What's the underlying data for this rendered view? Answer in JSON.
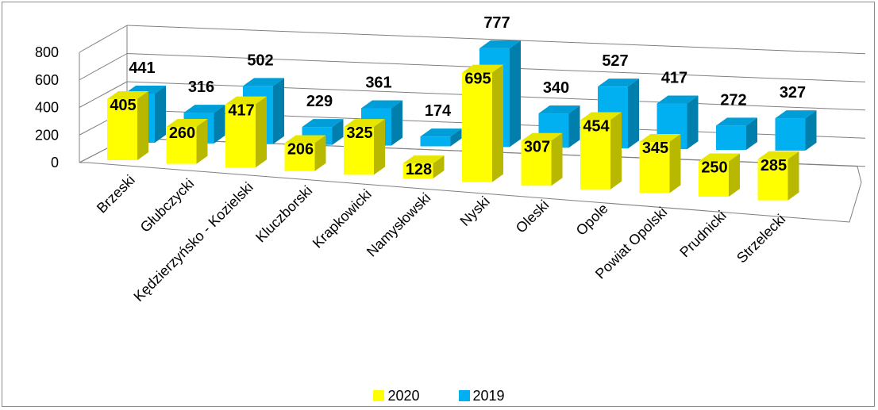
{
  "chart_data": {
    "type": "bar",
    "categories": [
      "Brzeski",
      "Głubczycki",
      "Kędzierzyńsko - Kozielski",
      "Kluczborski",
      "Krapkowicki",
      "Namysłowski",
      "Nyski",
      "Oleski",
      "Opole",
      "Powiat Opolski",
      "Prudnicki",
      "Strzelecki"
    ],
    "series": [
      {
        "name": "2020",
        "color": "#FFFF00",
        "values": [
          405,
          260,
          417,
          206,
          325,
          128,
          695,
          307,
          454,
          345,
          250,
          285
        ]
      },
      {
        "name": "2019",
        "color": "#00B0F0",
        "values": [
          441,
          316,
          502,
          229,
          361,
          174,
          777,
          340,
          527,
          417,
          272,
          327
        ]
      }
    ],
    "y_ticks": [
      "800",
      "600",
      "400",
      "200",
      "0"
    ],
    "ylim": [
      0,
      800
    ],
    "grid": true,
    "three_d": true,
    "legend_position": "bottom"
  }
}
